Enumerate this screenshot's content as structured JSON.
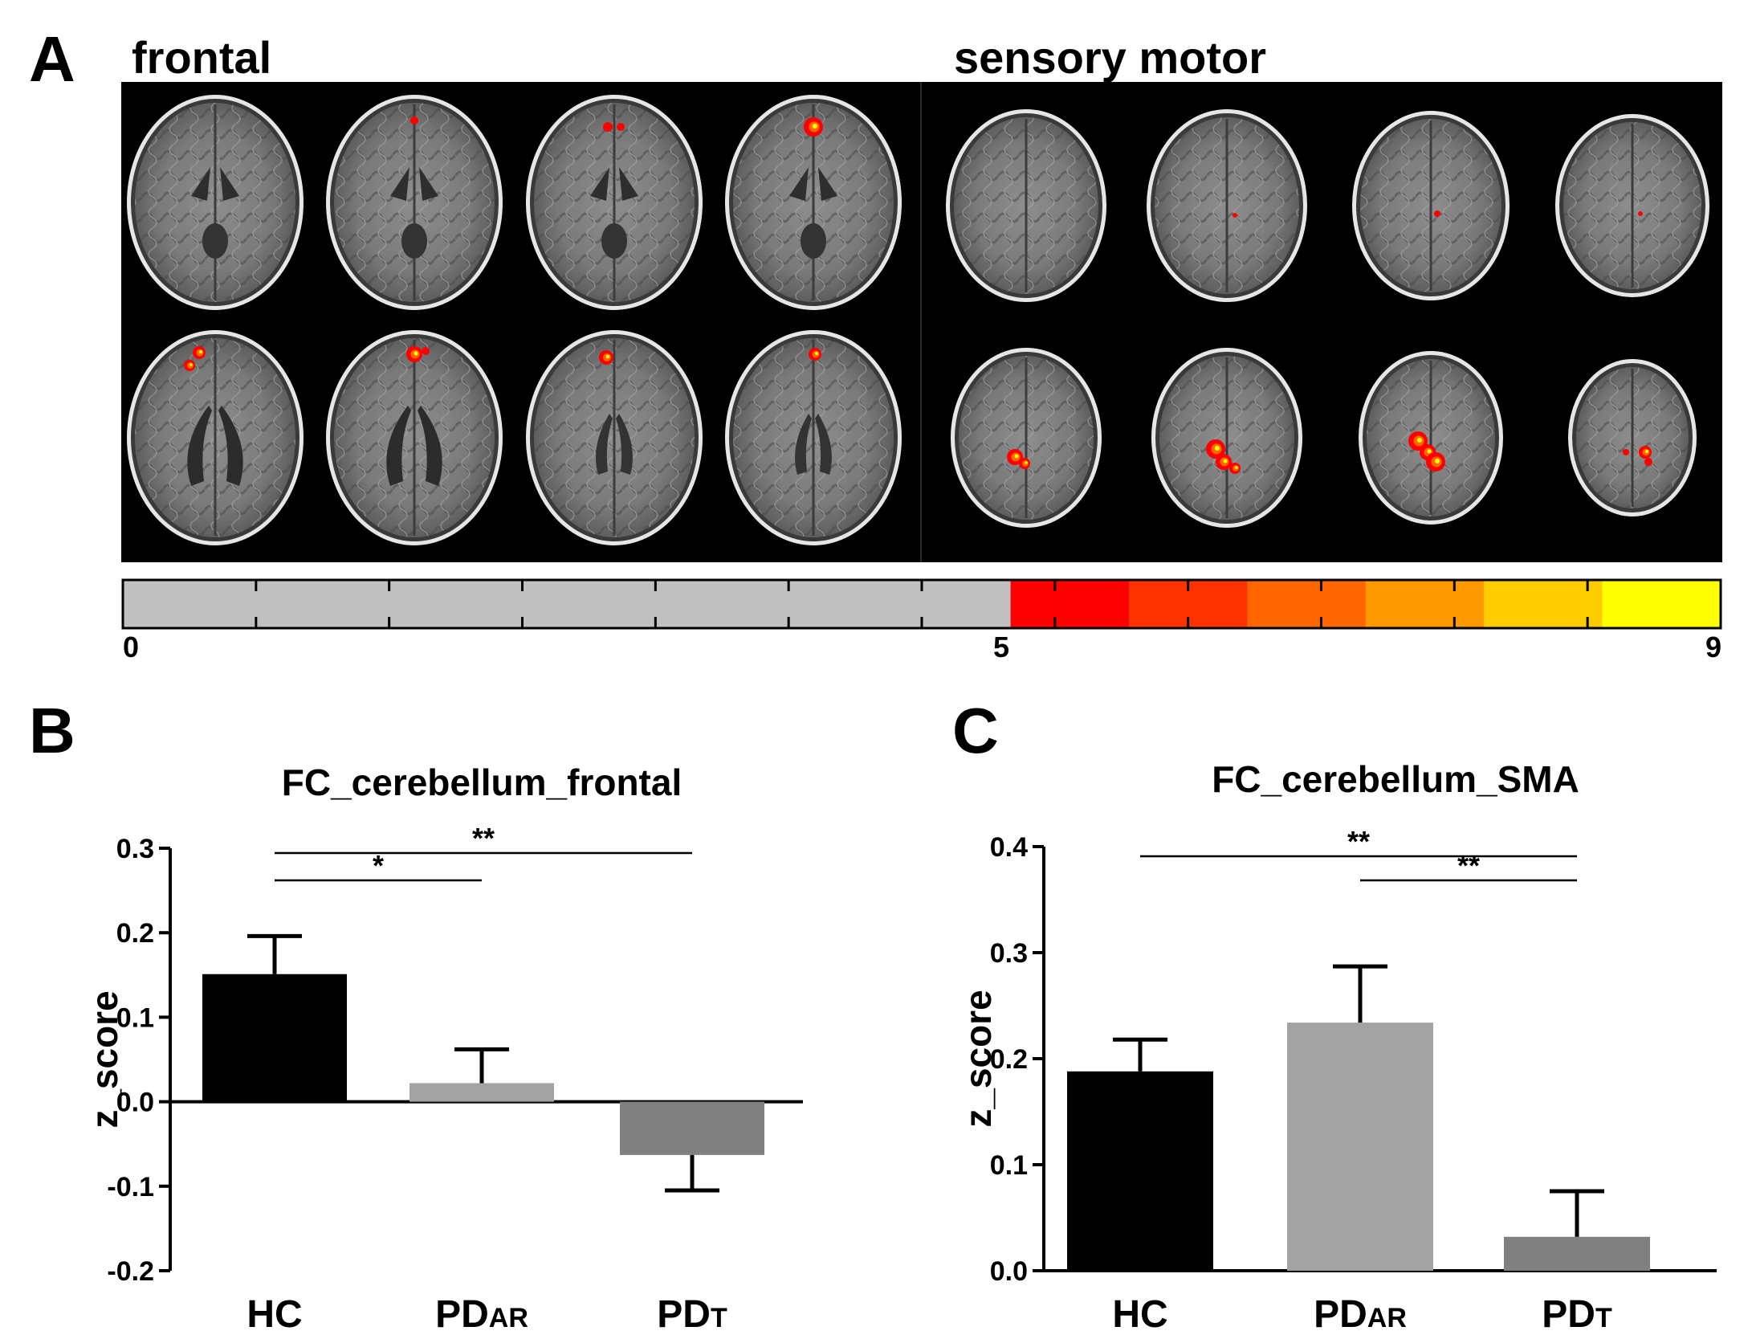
{
  "panel_a": {
    "letter": "A",
    "section_left_title": "frontal",
    "section_right_title": "sensory motor",
    "colorbar": {
      "min_label": "0",
      "mid_label": "5",
      "max_label": "9",
      "min": 0,
      "threshold": 5,
      "max": 9,
      "below_threshold_color": "#c0c0c0",
      "scale_colors": [
        "#ff0000",
        "#ff3300",
        "#ff6600",
        "#ff9900",
        "#ffcc00",
        "#ffff00"
      ]
    },
    "background_color": "#000000"
  },
  "chart_data": [
    {
      "panel_letter": "B",
      "type": "bar",
      "title": "FC_cerebellum_frontal",
      "xlabel": "",
      "ylabel": "z_score",
      "categories": [
        {
          "main": "HC",
          "sub": ""
        },
        {
          "main": "PD",
          "sub": "AR"
        },
        {
          "main": "PD",
          "sub": "T"
        }
      ],
      "values": [
        0.151,
        0.022,
        -0.063
      ],
      "errors": [
        0.045,
        0.04,
        0.042
      ],
      "colors": [
        "#000000",
        "#a3a3a3",
        "#808080"
      ],
      "ylim": [
        -0.2,
        0.3
      ],
      "yticks": [
        "-0.2",
        "-0.1",
        "0.0",
        "0.1",
        "0.2",
        "0.3"
      ],
      "significance": [
        {
          "from": 0,
          "to": 2,
          "label": "**",
          "level": 0
        },
        {
          "from": 0,
          "to": 1,
          "label": "*",
          "level": 1
        }
      ]
    },
    {
      "panel_letter": "C",
      "type": "bar",
      "title": "FC_cerebellum_SMA",
      "xlabel": "",
      "ylabel": "z_score",
      "categories": [
        {
          "main": "HC",
          "sub": ""
        },
        {
          "main": "PD",
          "sub": "AR"
        },
        {
          "main": "PD",
          "sub": "T"
        }
      ],
      "values": [
        0.188,
        0.234,
        0.032
      ],
      "errors": [
        0.03,
        0.053,
        0.043
      ],
      "colors": [
        "#000000",
        "#a3a3a3",
        "#808080"
      ],
      "ylim": [
        0.0,
        0.4
      ],
      "yticks": [
        "0.0",
        "0.1",
        "0.2",
        "0.3",
        "0.4"
      ],
      "significance": [
        {
          "from": 0,
          "to": 2,
          "label": "**",
          "level": 0
        },
        {
          "from": 1,
          "to": 2,
          "label": "**",
          "level": 1
        }
      ]
    }
  ]
}
